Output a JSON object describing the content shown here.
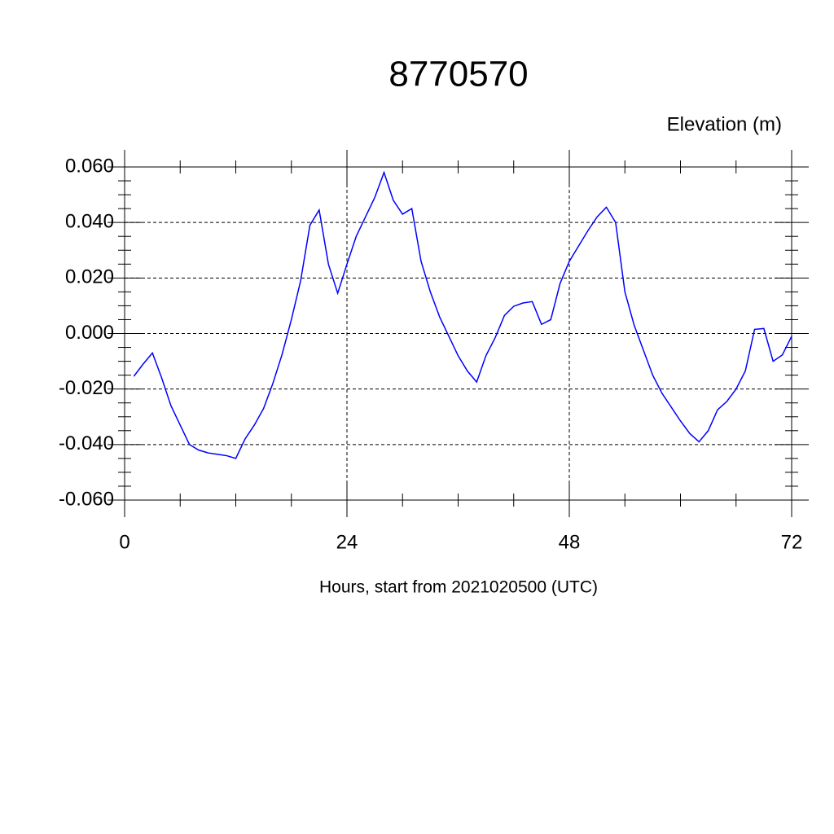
{
  "chart_data": {
    "type": "line",
    "title": "8770570",
    "y_label": "Elevation (m)",
    "x_label": "Hours, start from 2021020500 (UTC)",
    "x": [
      1,
      2,
      3,
      4,
      5,
      6,
      7,
      8,
      9,
      10,
      11,
      12,
      13,
      14,
      15,
      16,
      17,
      18,
      19,
      20,
      21,
      22,
      23,
      24,
      25,
      26,
      27,
      28,
      29,
      30,
      31,
      32,
      33,
      34,
      35,
      36,
      37,
      38,
      39,
      40,
      41,
      42,
      43,
      44,
      45,
      46,
      47,
      48,
      49,
      50,
      51,
      52,
      53,
      54,
      55,
      56,
      57,
      58,
      59,
      60,
      61,
      62,
      63,
      64,
      65,
      66,
      67,
      68,
      69,
      70,
      71,
      72
    ],
    "series": [
      {
        "color": "#0000ff",
        "values": [
          -0.0154,
          -0.011,
          -0.007,
          -0.016,
          -0.026,
          -0.033,
          -0.04,
          -0.042,
          -0.043,
          -0.0435,
          -0.044,
          -0.045,
          -0.038,
          -0.033,
          -0.027,
          -0.018,
          -0.0075,
          0.005,
          0.019,
          0.039,
          0.0445,
          0.025,
          0.0145,
          0.025,
          0.035,
          0.042,
          0.049,
          0.058,
          0.048,
          0.043,
          0.045,
          0.026,
          0.015,
          0.006,
          -0.001,
          -0.008,
          -0.0135,
          -0.0175,
          -0.008,
          -0.0015,
          0.0065,
          0.0098,
          0.011,
          0.0115,
          0.0033,
          0.005,
          0.018,
          0.026,
          0.0315,
          0.037,
          0.042,
          0.0455,
          0.04,
          0.015,
          0.003,
          -0.006,
          -0.015,
          -0.0215,
          -0.0265,
          -0.0315,
          -0.036,
          -0.039,
          -0.035,
          -0.0275,
          -0.0245,
          -0.02,
          -0.0135,
          0.0015,
          0.0018,
          -0.01,
          -0.0077,
          -0.001
        ]
      }
    ],
    "xlim": [
      0,
      72
    ],
    "xticks": [
      0,
      24,
      48,
      72
    ],
    "ylim": [
      -0.06,
      0.06
    ],
    "yticks": [
      {
        "value": -0.06,
        "label": "-0.060"
      },
      {
        "value": -0.04,
        "label": "-0.040"
      },
      {
        "value": -0.02,
        "label": "-0.020"
      },
      {
        "value": 0,
        "label": "0.000"
      },
      {
        "value": 0.02,
        "label": "0.020"
      },
      {
        "value": 0.04,
        "label": "0.040"
      },
      {
        "value": 0.06,
        "label": "0.060"
      }
    ],
    "grid": true
  }
}
